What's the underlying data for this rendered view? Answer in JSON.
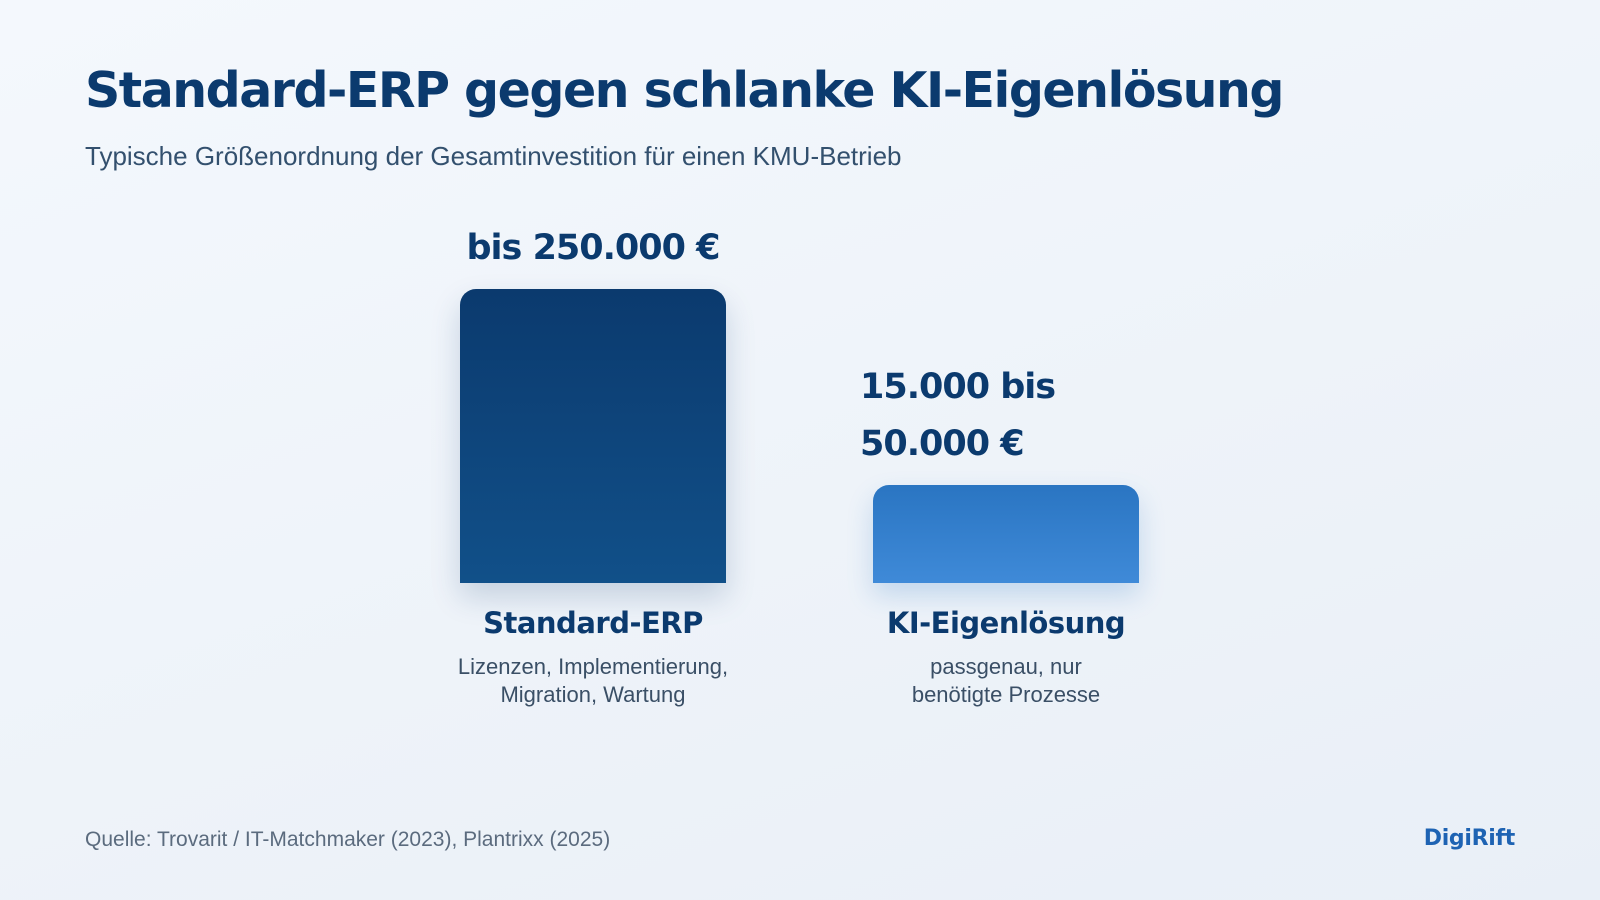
{
  "header": {
    "title": "Standard-ERP gegen schlanke KI-Eigenlösung",
    "subtitle": "Typische Größenordnung der Gesamtinvestition für einen KMU-Betrieb"
  },
  "chart_data": {
    "type": "bar",
    "title": "Standard-ERP gegen schlanke KI-Eigenlösung",
    "subtitle": "Typische Größenordnung der Gesamtinvestition für einen KMU-Betrieb",
    "grid": false,
    "legend": "none",
    "categories": [
      "Standard-ERP",
      "KI-Eigenlösung"
    ],
    "category_descriptions": [
      [
        "Lizenzen, Implementierung,",
        "Migration, Wartung"
      ],
      [
        "passgenau, nur",
        "benötigte Prozesse"
      ]
    ],
    "value_labels": [
      [
        "bis 250.000 €"
      ],
      [
        "15.000 bis",
        "50.000 €"
      ]
    ],
    "values": [
      250000,
      50000
    ],
    "value_ranges": [
      [
        0,
        250000
      ],
      [
        15000,
        50000
      ]
    ],
    "unit": "€",
    "colors": [
      "#0b3a6e",
      "#2a75c2"
    ]
  },
  "footer": {
    "source": "Quelle: Trovarit / IT-Matchmaker (2023), Plantrixx (2025)",
    "brand": "DigiRift"
  }
}
